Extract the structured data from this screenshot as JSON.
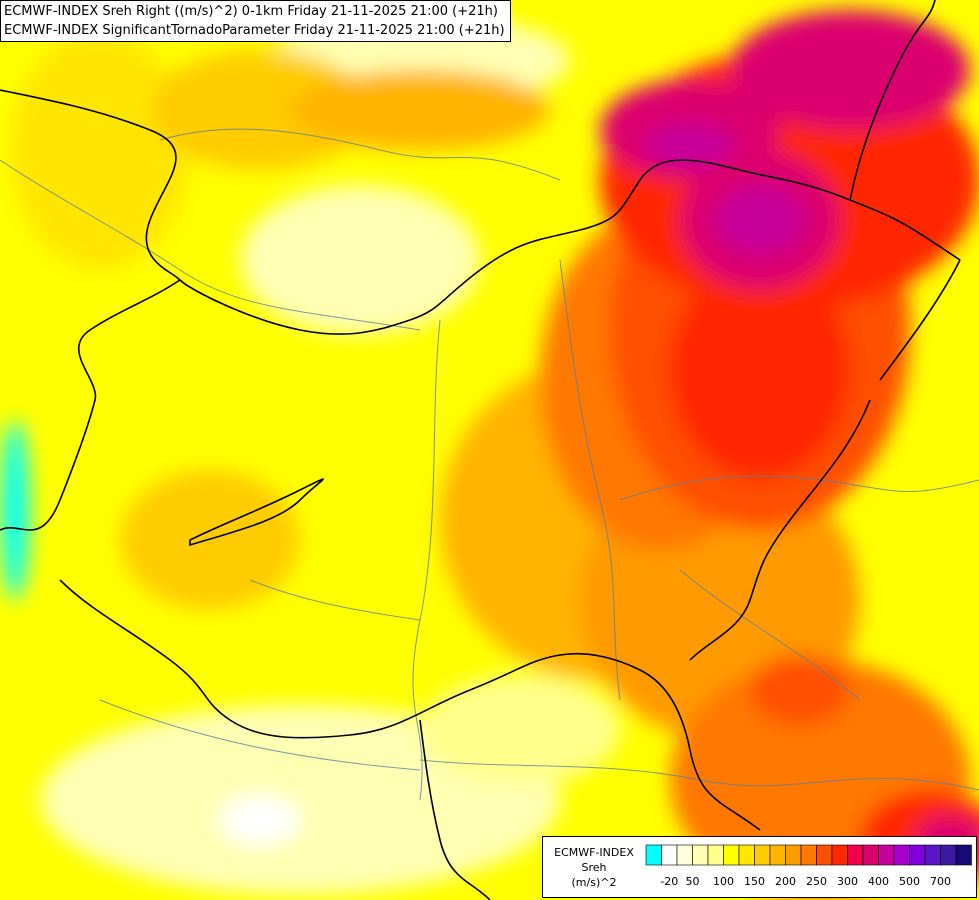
{
  "titles": {
    "line1": "ECMWF-INDEX Sreh Right ((m/s)^2) 0-1km Friday 21-11-2025 21:00 (+21h)",
    "line2": "ECMWF-INDEX SignificantTornadoParameter Friday 21-11-2025 21:00 (+21h)"
  },
  "legend": {
    "line1": "ECMWF-INDEX",
    "line2": "Sreh",
    "line3": "(m/s)^2",
    "colors": [
      "#00ffff",
      "#ffffff",
      "#ffffdc",
      "#ffffb4",
      "#ffff8c",
      "#ffff00",
      "#ffe600",
      "#ffcc00",
      "#ffb400",
      "#ff9a00",
      "#ff7800",
      "#ff5000",
      "#ff2800",
      "#f0004a",
      "#dc006e",
      "#c8009a",
      "#a800d0",
      "#8200dc",
      "#5a14c8",
      "#3c1aa0",
      "#140a78"
    ],
    "ticks": [
      "-20",
      "50",
      "100",
      "150",
      "200",
      "250",
      "300",
      "400",
      "500",
      "700"
    ]
  }
}
